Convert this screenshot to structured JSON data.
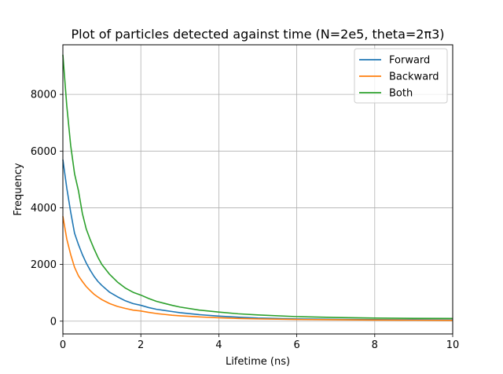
{
  "chart_data": {
    "type": "line",
    "title": "Plot of particles detected against time (N=2e5, theta=2π3)",
    "xlabel": "Lifetime (ns)",
    "ylabel": "Frequency",
    "xlim": [
      0,
      10
    ],
    "ylim": [
      -450,
      9750
    ],
    "x_ticks": [
      "0",
      "2",
      "4",
      "6",
      "8",
      "10"
    ],
    "y_ticks": [
      "0",
      "2000",
      "4000",
      "6000",
      "8000"
    ],
    "grid": true,
    "legend_position": "top-right",
    "colors": {
      "Forward": "#1f77b4",
      "Backward": "#ff7f0e",
      "Both": "#2ca02c"
    },
    "series": [
      {
        "name": "Forward",
        "x": [
          0,
          0.1,
          0.2,
          0.3,
          0.4,
          0.5,
          0.6,
          0.7,
          0.8,
          0.9,
          1.0,
          1.2,
          1.4,
          1.6,
          1.8,
          2.0,
          2.2,
          2.4,
          2.6,
          2.8,
          3.0,
          3.5,
          4.0,
          4.5,
          5.0,
          6.0,
          7.0,
          8.0,
          9.0,
          10.0
        ],
        "values": [
          5700,
          4700,
          3850,
          3100,
          2700,
          2350,
          2050,
          1800,
          1580,
          1400,
          1260,
          1020,
          860,
          720,
          620,
          560,
          480,
          420,
          380,
          340,
          300,
          230,
          180,
          140,
          110,
          80,
          65,
          55,
          50,
          45
        ]
      },
      {
        "name": "Backward",
        "x": [
          0,
          0.1,
          0.2,
          0.3,
          0.4,
          0.5,
          0.6,
          0.7,
          0.8,
          0.9,
          1.0,
          1.2,
          1.4,
          1.6,
          1.8,
          2.0,
          2.2,
          2.4,
          2.6,
          2.8,
          3.0,
          3.5,
          4.0,
          4.5,
          5.0,
          6.0,
          7.0,
          8.0,
          9.0,
          10.0
        ],
        "values": [
          3700,
          2900,
          2350,
          1900,
          1600,
          1400,
          1220,
          1080,
          950,
          850,
          760,
          620,
          520,
          450,
          390,
          360,
          310,
          270,
          240,
          210,
          190,
          150,
          120,
          95,
          80,
          60,
          50,
          40,
          35,
          30
        ]
      },
      {
        "name": "Both",
        "x": [
          0,
          0.1,
          0.2,
          0.3,
          0.4,
          0.5,
          0.6,
          0.7,
          0.8,
          0.9,
          1.0,
          1.2,
          1.4,
          1.6,
          1.8,
          2.0,
          2.2,
          2.4,
          2.6,
          2.8,
          3.0,
          3.5,
          4.0,
          4.5,
          5.0,
          6.0,
          7.0,
          8.0,
          9.0,
          10.0
        ],
        "values": [
          9400,
          7600,
          6200,
          5200,
          4600,
          3800,
          3250,
          2880,
          2550,
          2250,
          2000,
          1650,
          1380,
          1170,
          1020,
          920,
          800,
          700,
          630,
          560,
          500,
          390,
          320,
          260,
          220,
          160,
          130,
          110,
          100,
          95
        ]
      }
    ]
  }
}
